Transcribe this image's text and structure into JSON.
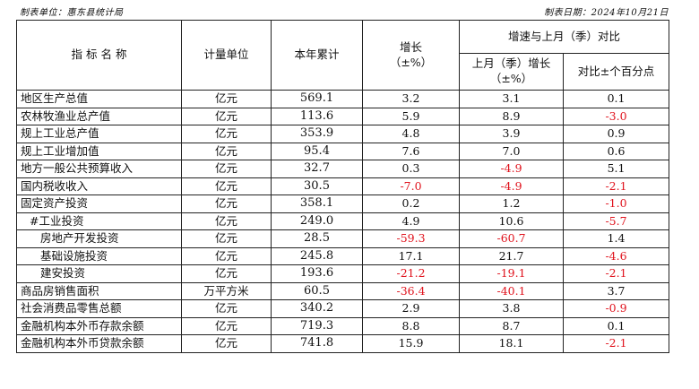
{
  "header": {
    "left": "制表单位：惠东县统计局",
    "right": "制表日期：2024年10月21日"
  },
  "columns": {
    "indicator": "指 标 名 称",
    "unit": "计量单位",
    "total": "本年累计",
    "growth": "增长",
    "growth_sub": "（±%）",
    "compare_group": "增速与上月（季）对比",
    "prev_growth": "上月（季）增长",
    "prev_growth_sub": "（±%）",
    "diff": "对比±个百分点"
  },
  "rows": [
    {
      "name": "地区生产总值",
      "indent": 0,
      "unit": "亿元",
      "total": "569.1",
      "growth": "3.2",
      "prev": "3.1",
      "diff": "0.1"
    },
    {
      "name": "农林牧渔业总产值",
      "indent": 0,
      "unit": "亿元",
      "total": "113.6",
      "growth": "5.9",
      "prev": "8.9",
      "diff": "-3.0"
    },
    {
      "name": "规上工业总产值",
      "indent": 0,
      "unit": "亿元",
      "total": "353.9",
      "growth": "4.8",
      "prev": "3.9",
      "diff": "0.9"
    },
    {
      "name": "规上工业增加值",
      "indent": 0,
      "unit": "亿元",
      "total": "95.4",
      "growth": "7.6",
      "prev": "7.0",
      "diff": "0.6"
    },
    {
      "name": "地方一般公共预算收入",
      "indent": 0,
      "unit": "亿元",
      "total": "32.7",
      "growth": "0.3",
      "prev": "-4.9",
      "diff": "5.1"
    },
    {
      "name": "国内税收收入",
      "indent": 0,
      "unit": "亿元",
      "total": "30.5",
      "growth": "-7.0",
      "prev": "-4.9",
      "diff": "-2.1"
    },
    {
      "name": "固定资产投资",
      "indent": 0,
      "unit": "亿元",
      "total": "358.1",
      "growth": "0.2",
      "prev": "1.2",
      "diff": "-1.0"
    },
    {
      "name": "#工业投资",
      "indent": 1,
      "unit": "亿元",
      "total": "249.0",
      "growth": "4.9",
      "prev": "10.6",
      "diff": "-5.7"
    },
    {
      "name": "房地产开发投资",
      "indent": 2,
      "unit": "亿元",
      "total": "28.5",
      "growth": "-59.3",
      "prev": "-60.7",
      "diff": "1.4"
    },
    {
      "name": "基础设施投资",
      "indent": 2,
      "unit": "亿元",
      "total": "245.8",
      "growth": "17.1",
      "prev": "21.7",
      "diff": "-4.6"
    },
    {
      "name": "建安投资",
      "indent": 2,
      "unit": "亿元",
      "total": "193.6",
      "growth": "-21.2",
      "prev": "-19.1",
      "diff": "-2.1"
    },
    {
      "name": "商品房销售面积",
      "indent": 0,
      "unit": "万平方米",
      "total": "60.5",
      "growth": "-36.4",
      "prev": "-40.1",
      "diff": "3.7"
    },
    {
      "name": "社会消费品零售总额",
      "indent": 0,
      "unit": "亿元",
      "total": "340.2",
      "growth": "2.9",
      "prev": "3.8",
      "diff": "-0.9"
    },
    {
      "name": "金融机构本外币存款余额",
      "indent": 0,
      "unit": "亿元",
      "total": "719.3",
      "growth": "8.8",
      "prev": "8.7",
      "diff": "0.1"
    },
    {
      "name": "金融机构本外币贷款余额",
      "indent": 0,
      "unit": "亿元",
      "total": "741.8",
      "growth": "15.9",
      "prev": "18.1",
      "diff": "-2.1"
    }
  ]
}
